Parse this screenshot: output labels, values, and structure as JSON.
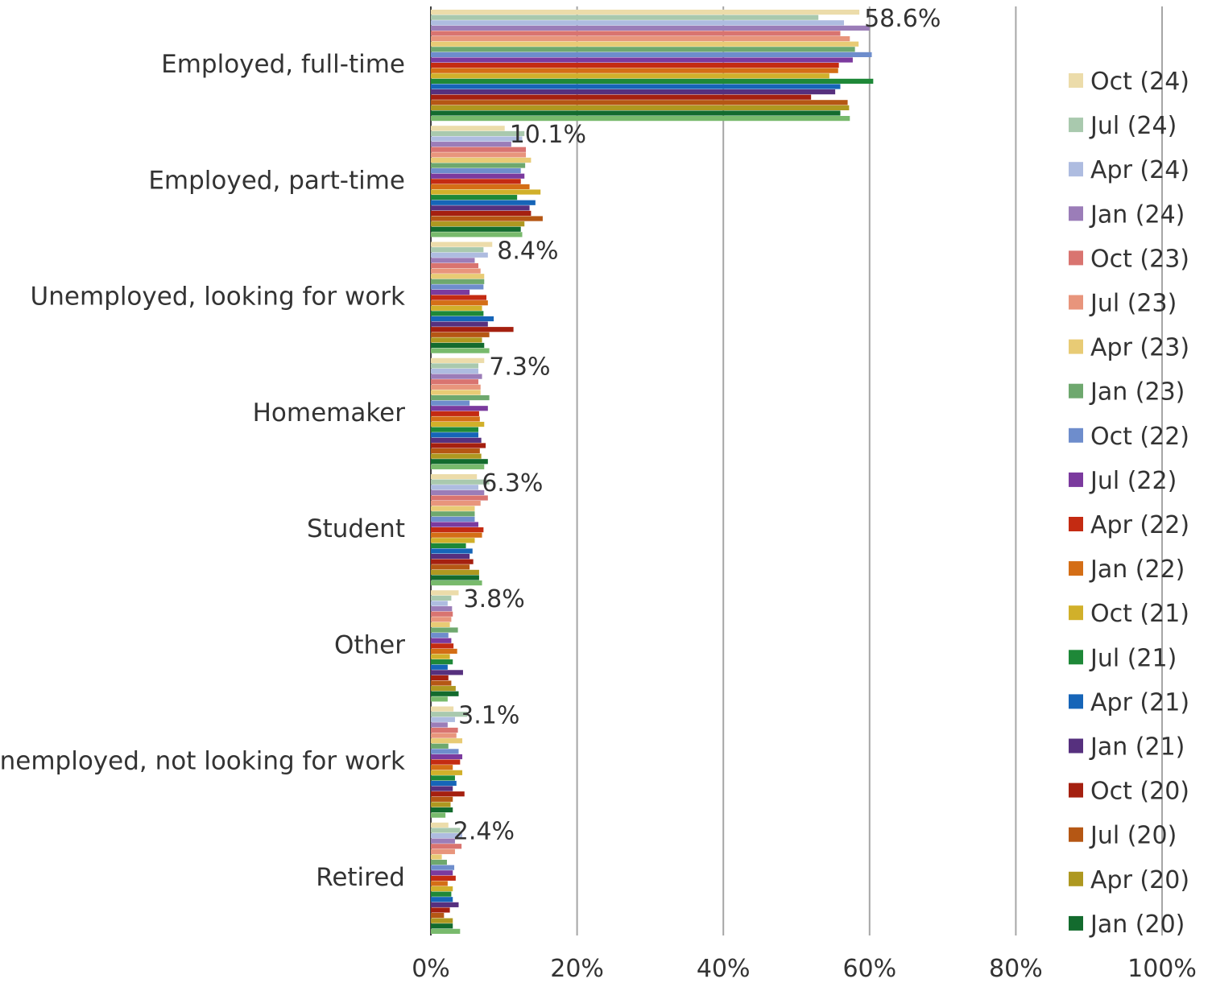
{
  "chart_data": {
    "type": "bar",
    "orientation": "horizontal",
    "categories": [
      "Employed, full-time",
      "Employed, part-time",
      "Unemployed, looking for work",
      "Homemaker",
      "Student",
      "Other",
      "Unemployed, not looking for work",
      "Retired"
    ],
    "x_ticks": [
      "0%",
      "20%",
      "40%",
      "60%",
      "80%",
      "100%"
    ],
    "xlim": [
      0,
      100
    ],
    "grid": true,
    "legend_position": "right",
    "data_labels": [
      "58.6%",
      "10.1%",
      "8.4%",
      "7.3%",
      "6.3%",
      "3.8%",
      "3.1%",
      "2.4%"
    ],
    "series": [
      {
        "name": "Oct (24)",
        "color": "#ECDCAA",
        "values": [
          58.6,
          10.1,
          8.4,
          7.3,
          6.3,
          3.8,
          3.1,
          2.4
        ]
      },
      {
        "name": "Jul (24)",
        "color": "#A9C9AE",
        "values": [
          53.0,
          12.8,
          7.2,
          6.5,
          8.0,
          2.8,
          5.0,
          4.0
        ]
      },
      {
        "name": "Apr (24)",
        "color": "#AEBCE0",
        "values": [
          56.5,
          12.5,
          7.8,
          6.5,
          6.5,
          2.3,
          3.3,
          4.3
        ]
      },
      {
        "name": "Jan (24)",
        "color": "#9B7DB8",
        "values": [
          60.0,
          11.0,
          6.0,
          7.0,
          7.3,
          2.9,
          2.3,
          3.3
        ]
      },
      {
        "name": "Oct (23)",
        "color": "#D97470",
        "values": [
          56.0,
          13.0,
          6.5,
          6.5,
          7.8,
          3.0,
          3.7,
          4.2
        ]
      },
      {
        "name": "Jul (23)",
        "color": "#E8957C",
        "values": [
          57.3,
          13.0,
          6.8,
          6.8,
          6.8,
          2.8,
          3.5,
          3.3
        ]
      },
      {
        "name": "Apr (23)",
        "color": "#E8CB75",
        "values": [
          58.5,
          13.7,
          7.3,
          6.8,
          6.0,
          2.6,
          4.3,
          1.5
        ]
      },
      {
        "name": "Jan (23)",
        "color": "#6EA86E",
        "values": [
          58.0,
          12.9,
          7.3,
          8.0,
          6.0,
          3.7,
          2.4,
          2.2
        ]
      },
      {
        "name": "Oct (22)",
        "color": "#6E8DCC",
        "values": [
          60.3,
          12.3,
          7.2,
          5.3,
          6.0,
          2.4,
          3.8,
          3.2
        ]
      },
      {
        "name": "Jul (22)",
        "color": "#7B3A9E",
        "values": [
          57.7,
          12.8,
          5.3,
          7.8,
          6.5,
          2.8,
          4.3,
          3.0
        ]
      },
      {
        "name": "Apr (22)",
        "color": "#C42B12",
        "values": [
          55.8,
          12.3,
          7.6,
          6.6,
          7.2,
          3.1,
          4.0,
          3.4
        ]
      },
      {
        "name": "Jan (22)",
        "color": "#D46E16",
        "values": [
          55.7,
          13.5,
          7.8,
          6.7,
          7.0,
          3.6,
          3.0,
          2.3
        ]
      },
      {
        "name": "Oct (21)",
        "color": "#D1B02A",
        "values": [
          54.5,
          15.0,
          7.0,
          7.3,
          6.0,
          2.6,
          4.3,
          3.0
        ]
      },
      {
        "name": "Jul (21)",
        "color": "#1E8838",
        "values": [
          60.5,
          11.8,
          7.2,
          6.5,
          4.8,
          3.0,
          3.3,
          2.8
        ]
      },
      {
        "name": "Apr (21)",
        "color": "#1665B8",
        "values": [
          56.0,
          14.3,
          8.6,
          6.5,
          5.7,
          2.3,
          3.5,
          3.0
        ]
      },
      {
        "name": "Jan (21)",
        "color": "#56307E",
        "values": [
          55.3,
          13.5,
          7.8,
          6.9,
          5.3,
          4.4,
          3.0,
          3.8
        ]
      },
      {
        "name": "Oct (20)",
        "color": "#A52010",
        "values": [
          52.0,
          13.7,
          11.3,
          7.5,
          5.8,
          2.4,
          4.6,
          2.6
        ]
      },
      {
        "name": "Jul (20)",
        "color": "#B55714",
        "values": [
          57.0,
          15.3,
          8.0,
          6.7,
          5.3,
          2.8,
          3.0,
          1.8
        ]
      },
      {
        "name": "Apr (20)",
        "color": "#AE9820",
        "values": [
          57.2,
          12.8,
          7.0,
          6.9,
          6.6,
          3.4,
          2.7,
          3.0
        ]
      },
      {
        "name": "Jan (20)",
        "color": "#136B2E",
        "values": [
          56.0,
          12.3,
          7.3,
          7.8,
          6.6,
          3.8,
          3.0,
          3.0
        ]
      },
      {
        "name": "",
        "color": "#78BA6C",
        "values": [
          57.3,
          12.5,
          8.0,
          7.3,
          7.0,
          2.3,
          2.0,
          4.0
        ]
      }
    ]
  }
}
